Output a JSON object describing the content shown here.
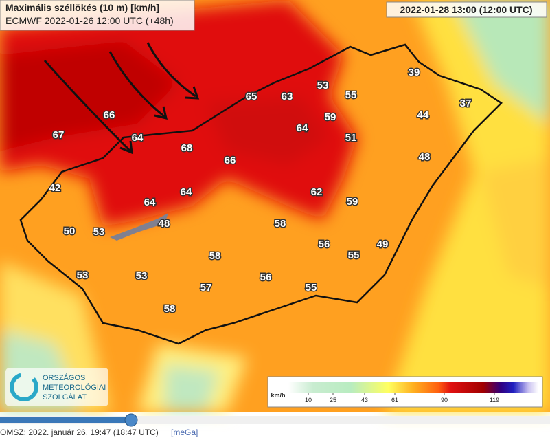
{
  "header": {
    "title": "Maximális széllökés (10 m) [km/h]",
    "subtitle": "ECMWF 2022-01-26 12:00 UTC (+48h)",
    "valid_time": "2022-01-28 13:00 (12:00 UTC)"
  },
  "map_labels": [
    39,
    53,
    55,
    65,
    63,
    37,
    44,
    66,
    59,
    64,
    67,
    64,
    51,
    68,
    48,
    66,
    42,
    64,
    62,
    59,
    64,
    48,
    58,
    50,
    53,
    56,
    49,
    58,
    55,
    53,
    53,
    56,
    57,
    55,
    58
  ],
  "legend": {
    "unit": "km/h",
    "ticks": [
      10,
      25,
      43,
      61,
      90,
      119
    ]
  },
  "logo": {
    "lines": [
      "ORSZÁGOS",
      "METEOROLÓGIAI",
      "SZOLGÁLAT"
    ]
  },
  "footer": {
    "text": "OMSZ: 2022. január 26. 19:47 (18:47 UTC)",
    "link": "[meGa]"
  }
}
